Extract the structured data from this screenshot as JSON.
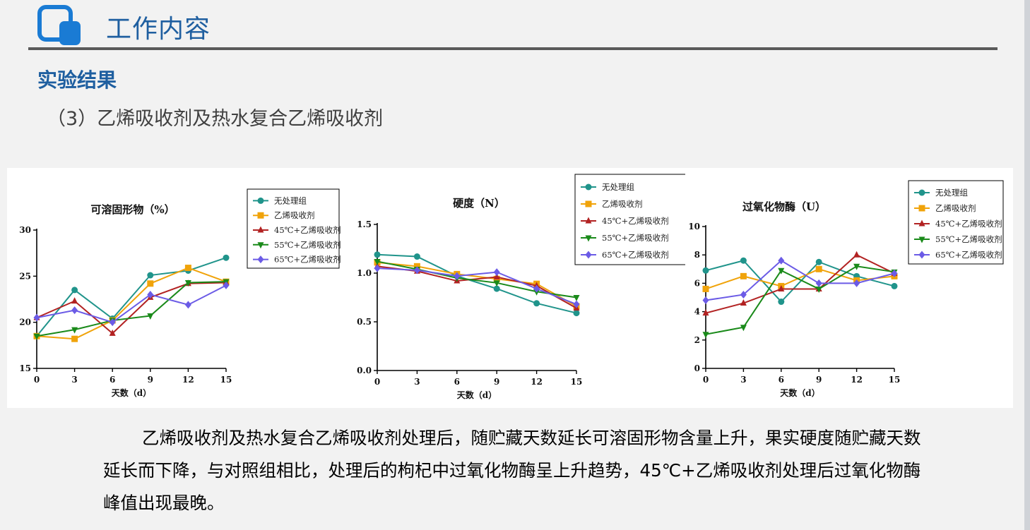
{
  "header": {
    "title": "工作内容",
    "icon": "rounded-square-logo-icon",
    "accent_color": "#1f5fa0",
    "icon_color": "#1a7bd4"
  },
  "section": {
    "title": "实验结果",
    "subtitle": "（3）乙烯吸收剂及热水复合乙烯吸收剂"
  },
  "series_colors": [
    "#20948b",
    "#f0a30a",
    "#b22222",
    "#1a8a1a",
    "#6b5be6"
  ],
  "series_markers": [
    "circle",
    "square",
    "triangle-up",
    "triangle-down",
    "diamond"
  ],
  "chart_data": [
    {
      "type": "line",
      "title": "可溶固形物（%）",
      "xlabel": "天数（d）",
      "ylabel": "",
      "x": [
        0,
        3,
        6,
        9,
        12,
        15
      ],
      "xticks": [
        "0",
        "3",
        "6",
        "9",
        "12",
        "15"
      ],
      "yticks": [
        "15",
        "20",
        "25",
        "30"
      ],
      "ylim": [
        15,
        30
      ],
      "legend_position": "top-right",
      "grid": false,
      "series": [
        {
          "name": "无处理组",
          "values": [
            18.5,
            23.5,
            20.4,
            25.1,
            25.6,
            27.0
          ]
        },
        {
          "name": "乙烯吸收剂",
          "values": [
            18.5,
            18.2,
            20.2,
            24.2,
            25.9,
            24.4
          ]
        },
        {
          "name": "45℃+乙烯吸收剂",
          "values": [
            20.5,
            22.3,
            18.8,
            22.7,
            24.2,
            24.3
          ]
        },
        {
          "name": "55℃+乙烯吸收剂",
          "values": [
            18.5,
            19.2,
            20.2,
            20.7,
            24.3,
            24.4
          ]
        },
        {
          "name": "65℃+乙烯吸收剂",
          "values": [
            20.5,
            21.3,
            20.0,
            23.0,
            21.9,
            24.0
          ]
        }
      ]
    },
    {
      "type": "line",
      "title": "硬度（N）",
      "xlabel": "天数（d）",
      "ylabel": "",
      "x": [
        0,
        3,
        6,
        9,
        12,
        15
      ],
      "xticks": [
        "0",
        "3",
        "6",
        "9",
        "12",
        "15"
      ],
      "yticks": [
        "0.0",
        "0.5",
        "1.0",
        "1.5"
      ],
      "ylim": [
        0,
        1.5
      ],
      "legend_position": "top-right",
      "grid": false,
      "series": [
        {
          "name": "无处理组",
          "values": [
            1.19,
            1.17,
            0.97,
            0.84,
            0.69,
            0.59
          ]
        },
        {
          "name": "乙烯吸收剂",
          "values": [
            1.11,
            1.07,
            0.99,
            0.94,
            0.89,
            0.66
          ]
        },
        {
          "name": "45℃+乙烯吸收剂",
          "values": [
            1.07,
            1.02,
            0.92,
            0.96,
            0.87,
            0.64
          ]
        },
        {
          "name": "55℃+乙烯吸收剂",
          "values": [
            1.12,
            1.04,
            0.95,
            0.9,
            0.81,
            0.75
          ]
        },
        {
          "name": "65℃+乙烯吸收剂",
          "values": [
            1.05,
            1.03,
            0.97,
            1.01,
            0.84,
            0.68
          ]
        }
      ]
    },
    {
      "type": "line",
      "title": "过氧化物酶（U）",
      "xlabel": "天数（d）",
      "ylabel": "",
      "x": [
        0,
        3,
        6,
        9,
        12,
        15
      ],
      "xticks": [
        "0",
        "3",
        "6",
        "9",
        "12",
        "15"
      ],
      "yticks": [
        "0",
        "2",
        "4",
        "6",
        "8",
        "10"
      ],
      "ylim": [
        0,
        10
      ],
      "legend_position": "top-right",
      "grid": false,
      "series": [
        {
          "name": "无处理组",
          "values": [
            6.9,
            7.6,
            4.7,
            7.5,
            6.5,
            5.8
          ]
        },
        {
          "name": "乙烯吸收剂",
          "values": [
            5.6,
            6.5,
            5.8,
            7.0,
            6.2,
            6.5
          ]
        },
        {
          "name": "45℃+乙烯吸收剂",
          "values": [
            3.9,
            4.6,
            5.6,
            5.6,
            8.0,
            6.7
          ]
        },
        {
          "name": "55℃+乙烯吸收剂",
          "values": [
            2.4,
            2.9,
            6.9,
            5.6,
            7.2,
            6.8
          ]
        },
        {
          "name": "65℃+乙烯吸收剂",
          "values": [
            4.8,
            5.2,
            7.6,
            6.0,
            6.0,
            6.7
          ]
        }
      ]
    }
  ],
  "conclusion": "乙烯吸收剂及热水复合乙烯吸收剂处理后，随贮藏天数延长可溶固形物含量上升，果实硬度随贮藏天数延长而下降，与对照组相比，处理后的枸杞中过氧化物酶呈上升趋势，45℃+乙烯吸收剂处理后过氧化物酶峰值出现最晚。"
}
